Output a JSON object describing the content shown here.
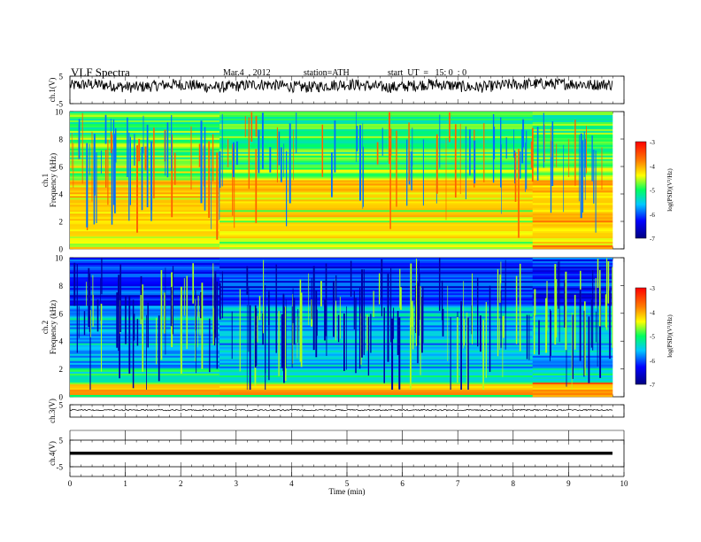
{
  "header": {
    "title": "VLF  Spectra",
    "date": "Mar.4  , 2012",
    "station": "station=ATH",
    "start": "start  UT  =   15: 0  : 0"
  },
  "chart_data": [
    {
      "type": "line",
      "ylabel": "ch.1(V)",
      "ylim": [
        -5,
        5
      ],
      "yticks": [
        "5",
        "-5"
      ],
      "xlim": [
        0,
        10
      ]
    },
    {
      "type": "heatmap",
      "ylabel": "ch.1\nFrequency  (kHz)",
      "ylim": [
        0,
        10
      ],
      "yticks": [
        "10",
        "8",
        "6",
        "4",
        "2",
        "0"
      ],
      "xlim": [
        0,
        10
      ],
      "colorbar": {
        "label": "log(PSD)(V²/Hz)",
        "range": [
          -7,
          -3
        ],
        "ticks": [
          "-3",
          "-4",
          "-5",
          "-6",
          "-7"
        ]
      },
      "bands": [
        {
          "freq": 4.8,
          "level": -4.0
        },
        {
          "freq": 4.4,
          "level": -4.1
        },
        {
          "freq": 3.4,
          "level": -4.2
        },
        {
          "freq": 3.0,
          "level": -4.2
        },
        {
          "freq": 2.4,
          "level": -4.1
        },
        {
          "freq": 1.8,
          "level": -4.2
        },
        {
          "freq": 1.2,
          "level": -4.3
        },
        {
          "freq": 0.6,
          "level": -4.4
        }
      ]
    },
    {
      "type": "heatmap",
      "ylabel": "ch.2\nFrequency  (kHz)",
      "ylim": [
        0,
        10
      ],
      "yticks": [
        "10",
        "8",
        "6",
        "4",
        "2",
        "0"
      ],
      "xlim": [
        0,
        10
      ],
      "colorbar": {
        "label": "log(PSD)(V²/Hz)",
        "range": [
          -7,
          -3
        ],
        "ticks": [
          "-3",
          "-4",
          "-5",
          "-6",
          "-7"
        ]
      },
      "bands": [
        {
          "freq": 4.6,
          "level": -5.6
        },
        {
          "freq": 3.5,
          "level": -5.7
        },
        {
          "freq": 1.2,
          "level": -5.4
        },
        {
          "freq": 0.7,
          "level": -4.2
        },
        {
          "freq": 0.3,
          "level": -3.8
        }
      ]
    },
    {
      "type": "line",
      "ylabel": "ch.3(V)",
      "ylim": [
        -5,
        5
      ],
      "yticks": [
        "5"
      ],
      "xlim": [
        0,
        10
      ]
    },
    {
      "type": "line",
      "ylabel": "ch.4(V)",
      "ylim": [
        -5,
        5
      ],
      "yticks": [
        "5",
        "-5"
      ],
      "xlim": [
        0,
        10
      ],
      "xlabel": "Time  (min)",
      "xticks": [
        "0",
        "1",
        "2",
        "3",
        "4",
        "5",
        "6",
        "7",
        "8",
        "9",
        "10"
      ]
    }
  ]
}
